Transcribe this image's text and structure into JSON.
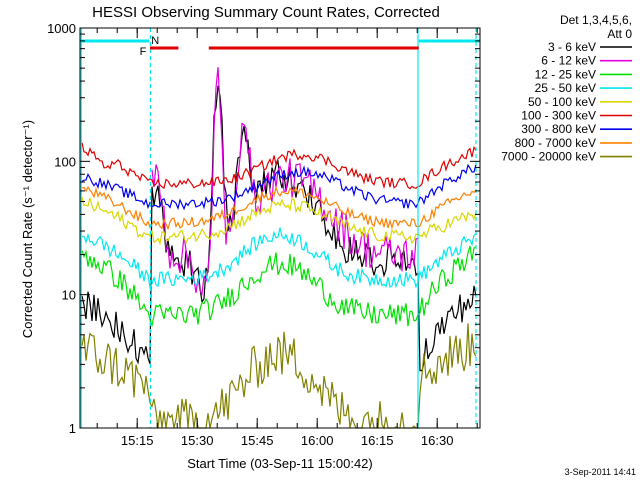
{
  "chart_data": {
    "type": "line",
    "title": "HESSI Observing Summary Count Rates, Corrected",
    "xlabel": "Start Time (03-Sep-11 15:00:42)",
    "ylabel": "Corrected Count Rate (s⁻¹ detector⁻¹)",
    "y_scale": "log",
    "ylim": [
      1,
      1000
    ],
    "xlim_minutes": [
      0,
      100
    ],
    "x_ticks": [
      {
        "label": "15:15",
        "minute": 14.3
      },
      {
        "label": "15:30",
        "minute": 29.3
      },
      {
        "label": "15:45",
        "minute": 44.3
      },
      {
        "label": "16:00",
        "minute": 59.3
      },
      {
        "label": "16:15",
        "minute": 74.3
      },
      {
        "label": "16:30",
        "minute": 89.3
      }
    ],
    "y_ticks": [
      {
        "label": "1",
        "value": 1
      },
      {
        "label": "10",
        "value": 10
      },
      {
        "label": "100",
        "value": 100
      },
      {
        "label": "1000",
        "value": 1000
      }
    ],
    "legend_header": [
      "Det 1,3,4,5,6,",
      "Att 0"
    ],
    "series": [
      {
        "name": "3 - 6 keV",
        "color": "#000000"
      },
      {
        "name": "6 - 12 keV",
        "color": "#e000e0"
      },
      {
        "name": "12 - 25 keV",
        "color": "#00e000"
      },
      {
        "name": "25 - 50 keV",
        "color": "#00e8f0"
      },
      {
        "name": "50 - 100 keV",
        "color": "#d8d800"
      },
      {
        "name": "100 - 300 keV",
        "color": "#e00000"
      },
      {
        "name": "300 - 800 keV",
        "color": "#0000f0"
      },
      {
        "name": "800 - 7000 keV",
        "color": "#ff8000"
      },
      {
        "name": "7000 - 20000 keV",
        "color": "#808000"
      }
    ],
    "flags": [
      {
        "label": "F",
        "color": "#e00000",
        "intervals": [
          [
            17.5,
            24.6
          ],
          [
            32.2,
            84.7
          ]
        ]
      },
      {
        "label": "N",
        "color": "#00e8f0",
        "intervals": [
          [
            0,
            17.3
          ],
          [
            84.7,
            100
          ]
        ]
      }
    ],
    "night_boundaries_minutes": [
      0.3,
      17.6,
      84.5,
      99.0
    ],
    "date_stamp": "3-Sep-2011 14:41"
  }
}
